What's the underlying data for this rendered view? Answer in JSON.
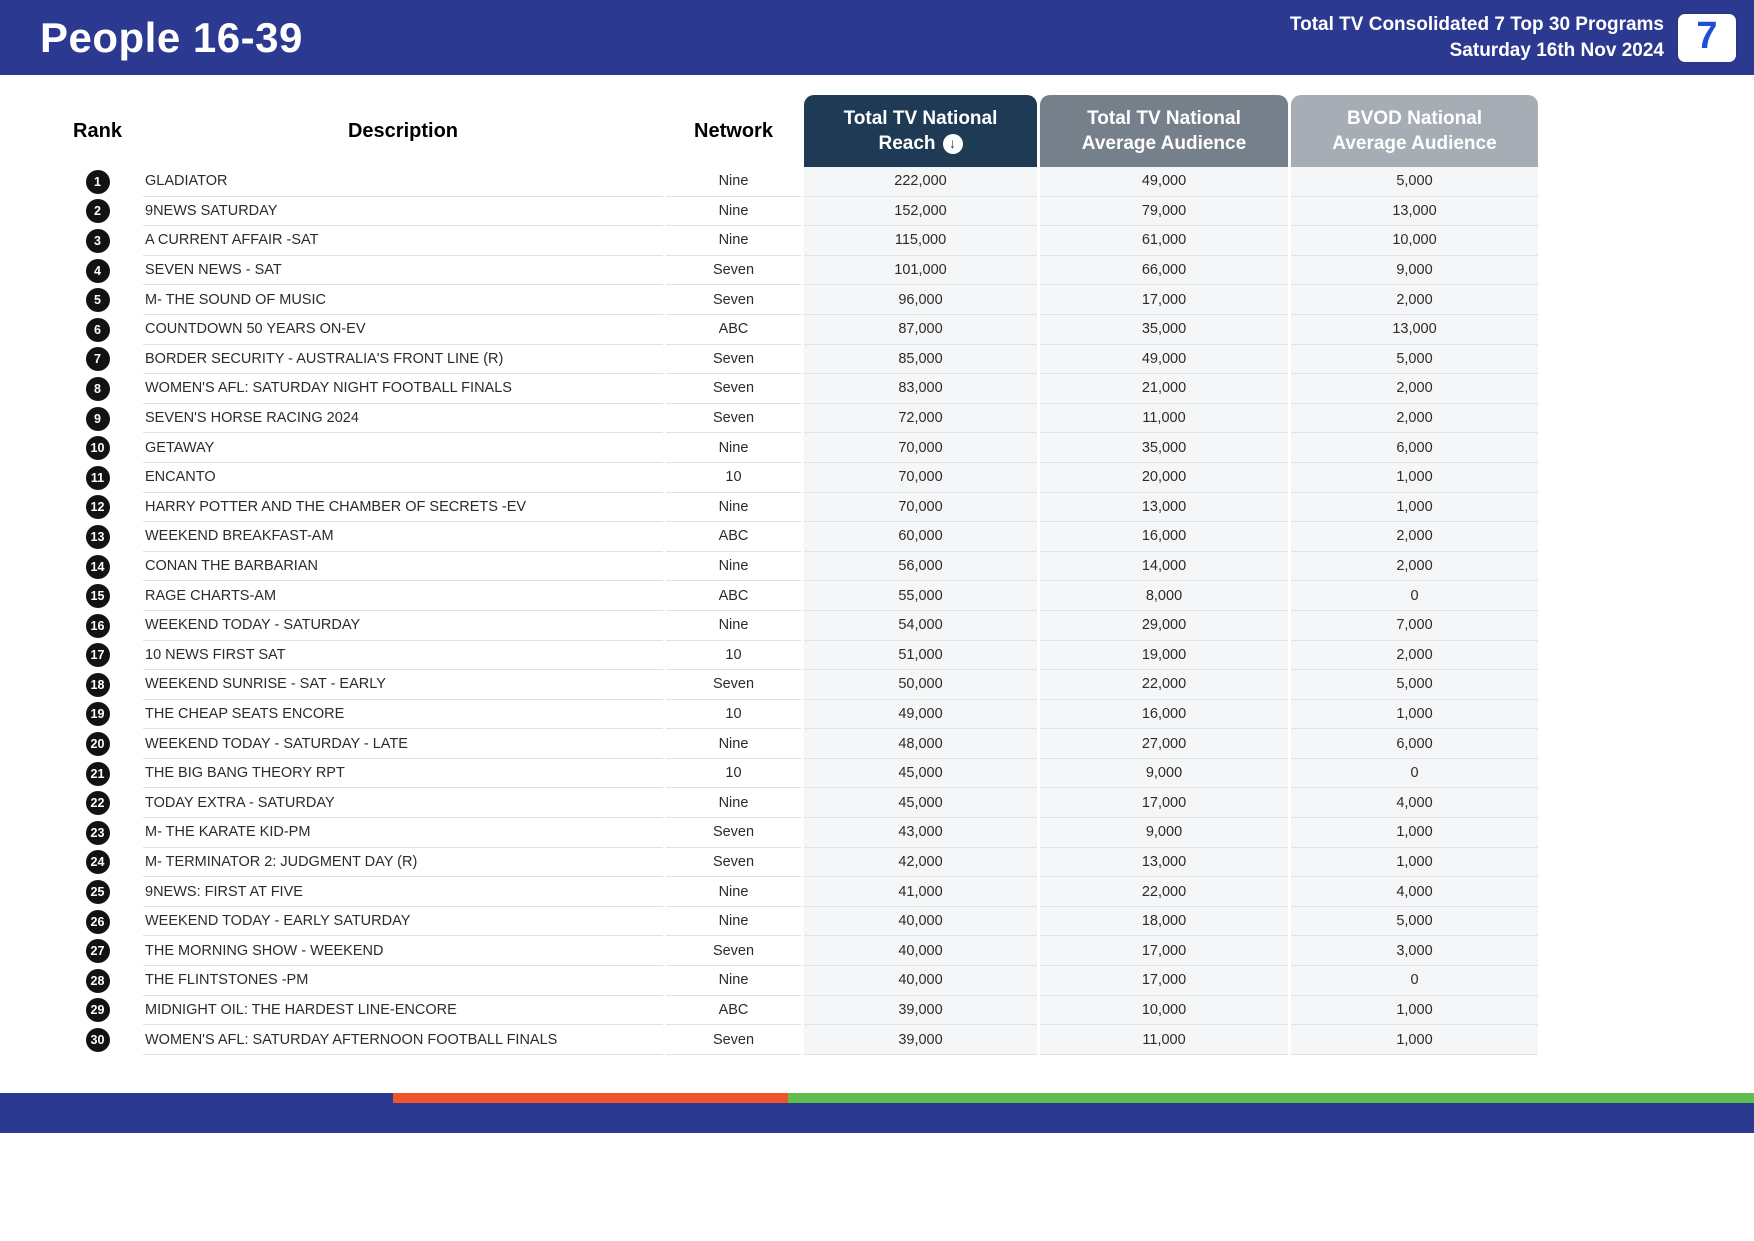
{
  "header": {
    "title": "People 16-39",
    "report_line1": "Total TV Consolidated 7 Top 30 Programs",
    "report_line2": "Saturday 16th Nov 2024",
    "logo_text": "7"
  },
  "table": {
    "headers": {
      "rank": "Rank",
      "description": "Description",
      "network": "Network",
      "reach_line1": "Total TV National",
      "reach_line2": "Reach",
      "avg_line1": "Total TV National",
      "avg_line2": "Average Audience",
      "bvod_line1": "BVOD National",
      "bvod_line2": "Average Audience"
    },
    "sort_icon": "↓",
    "rows": [
      {
        "rank": "1",
        "description": "GLADIATOR",
        "network": "Nine",
        "reach": "222,000",
        "avg_audience": "49,000",
        "bvod_audience": "5,000"
      },
      {
        "rank": "2",
        "description": "9NEWS SATURDAY",
        "network": "Nine",
        "reach": "152,000",
        "avg_audience": "79,000",
        "bvod_audience": "13,000"
      },
      {
        "rank": "3",
        "description": "A CURRENT AFFAIR -SAT",
        "network": "Nine",
        "reach": "115,000",
        "avg_audience": "61,000",
        "bvod_audience": "10,000"
      },
      {
        "rank": "4",
        "description": "SEVEN NEWS - SAT",
        "network": "Seven",
        "reach": "101,000",
        "avg_audience": "66,000",
        "bvod_audience": "9,000"
      },
      {
        "rank": "5",
        "description": "M- THE SOUND OF MUSIC",
        "network": "Seven",
        "reach": "96,000",
        "avg_audience": "17,000",
        "bvod_audience": "2,000"
      },
      {
        "rank": "6",
        "description": "COUNTDOWN 50 YEARS ON-EV",
        "network": "ABC",
        "reach": "87,000",
        "avg_audience": "35,000",
        "bvod_audience": "13,000"
      },
      {
        "rank": "7",
        "description": "BORDER SECURITY - AUSTRALIA'S FRONT LINE (R)",
        "network": "Seven",
        "reach": "85,000",
        "avg_audience": "49,000",
        "bvod_audience": "5,000"
      },
      {
        "rank": "8",
        "description": "WOMEN'S AFL: SATURDAY NIGHT FOOTBALL FINALS",
        "network": "Seven",
        "reach": "83,000",
        "avg_audience": "21,000",
        "bvod_audience": "2,000"
      },
      {
        "rank": "9",
        "description": "SEVEN'S HORSE RACING 2024",
        "network": "Seven",
        "reach": "72,000",
        "avg_audience": "11,000",
        "bvod_audience": "2,000"
      },
      {
        "rank": "10",
        "description": "GETAWAY",
        "network": "Nine",
        "reach": "70,000",
        "avg_audience": "35,000",
        "bvod_audience": "6,000"
      },
      {
        "rank": "11",
        "description": "ENCANTO",
        "network": "10",
        "reach": "70,000",
        "avg_audience": "20,000",
        "bvod_audience": "1,000"
      },
      {
        "rank": "12",
        "description": "HARRY POTTER AND THE CHAMBER OF SECRETS -EV",
        "network": "Nine",
        "reach": "70,000",
        "avg_audience": "13,000",
        "bvod_audience": "1,000"
      },
      {
        "rank": "13",
        "description": "WEEKEND BREAKFAST-AM",
        "network": "ABC",
        "reach": "60,000",
        "avg_audience": "16,000",
        "bvod_audience": "2,000"
      },
      {
        "rank": "14",
        "description": "CONAN THE BARBARIAN",
        "network": "Nine",
        "reach": "56,000",
        "avg_audience": "14,000",
        "bvod_audience": "2,000"
      },
      {
        "rank": "15",
        "description": "RAGE CHARTS-AM",
        "network": "ABC",
        "reach": "55,000",
        "avg_audience": "8,000",
        "bvod_audience": "0"
      },
      {
        "rank": "16",
        "description": "WEEKEND TODAY - SATURDAY",
        "network": "Nine",
        "reach": "54,000",
        "avg_audience": "29,000",
        "bvod_audience": "7,000"
      },
      {
        "rank": "17",
        "description": "10 NEWS FIRST SAT",
        "network": "10",
        "reach": "51,000",
        "avg_audience": "19,000",
        "bvod_audience": "2,000"
      },
      {
        "rank": "18",
        "description": "WEEKEND SUNRISE - SAT - EARLY",
        "network": "Seven",
        "reach": "50,000",
        "avg_audience": "22,000",
        "bvod_audience": "5,000"
      },
      {
        "rank": "19",
        "description": "THE CHEAP SEATS ENCORE",
        "network": "10",
        "reach": "49,000",
        "avg_audience": "16,000",
        "bvod_audience": "1,000"
      },
      {
        "rank": "20",
        "description": "WEEKEND TODAY - SATURDAY - LATE",
        "network": "Nine",
        "reach": "48,000",
        "avg_audience": "27,000",
        "bvod_audience": "6,000"
      },
      {
        "rank": "21",
        "description": "THE BIG BANG THEORY RPT",
        "network": "10",
        "reach": "45,000",
        "avg_audience": "9,000",
        "bvod_audience": "0"
      },
      {
        "rank": "22",
        "description": "TODAY EXTRA - SATURDAY",
        "network": "Nine",
        "reach": "45,000",
        "avg_audience": "17,000",
        "bvod_audience": "4,000"
      },
      {
        "rank": "23",
        "description": "M- THE KARATE KID-PM",
        "network": "Seven",
        "reach": "43,000",
        "avg_audience": "9,000",
        "bvod_audience": "1,000"
      },
      {
        "rank": "24",
        "description": "M- TERMINATOR 2: JUDGMENT DAY (R)",
        "network": "Seven",
        "reach": "42,000",
        "avg_audience": "13,000",
        "bvod_audience": "1,000"
      },
      {
        "rank": "25",
        "description": "9NEWS: FIRST AT FIVE",
        "network": "Nine",
        "reach": "41,000",
        "avg_audience": "22,000",
        "bvod_audience": "4,000"
      },
      {
        "rank": "26",
        "description": "WEEKEND TODAY - EARLY SATURDAY",
        "network": "Nine",
        "reach": "40,000",
        "avg_audience": "18,000",
        "bvod_audience": "5,000"
      },
      {
        "rank": "27",
        "description": "THE MORNING SHOW - WEEKEND",
        "network": "Seven",
        "reach": "40,000",
        "avg_audience": "17,000",
        "bvod_audience": "3,000"
      },
      {
        "rank": "28",
        "description": "THE FLINTSTONES -PM",
        "network": "Nine",
        "reach": "40,000",
        "avg_audience": "17,000",
        "bvod_audience": "0"
      },
      {
        "rank": "29",
        "description": "MIDNIGHT OIL: THE HARDEST LINE-ENCORE",
        "network": "ABC",
        "reach": "39,000",
        "avg_audience": "10,000",
        "bvod_audience": "1,000"
      },
      {
        "rank": "30",
        "description": "WOMEN'S AFL: SATURDAY AFTERNOON FOOTBALL FINALS",
        "network": "Seven",
        "reach": "39,000",
        "avg_audience": "11,000",
        "bvod_audience": "1,000"
      }
    ]
  },
  "colors": {
    "header_bar": "#2B3990",
    "reach_header": "#1F3A55",
    "avg_header": "#76808B",
    "bvod_header": "#A6ADB5",
    "footer_blue": "#2B3990",
    "footer_orange": "#F0542D",
    "footer_green": "#5FBE4D",
    "logo_blue": "#1C4FD6"
  }
}
